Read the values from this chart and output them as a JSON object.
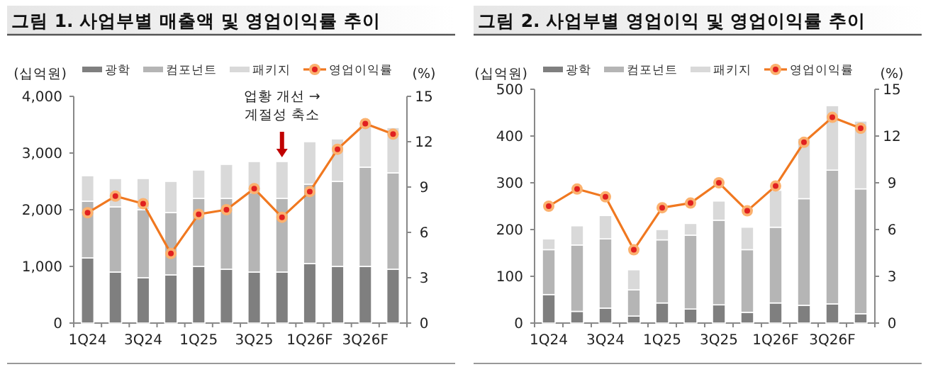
{
  "chart_data": [
    {
      "type": "bar",
      "title": "그림 1. 사업부별 매출액 및 영업이익률 추이",
      "ylabel": "(십억원)",
      "y2label": "(%)",
      "categories": [
        "1Q24",
        null,
        "3Q24",
        null,
        "1Q25",
        null,
        "3Q25",
        null,
        "1Q26F",
        null,
        "3Q26F",
        null
      ],
      "stacked": true,
      "legend": "top",
      "series": [
        {
          "name": "광학",
          "color": "#7f7f7f",
          "values": [
            1150,
            900,
            800,
            850,
            1000,
            950,
            900,
            900,
            1050,
            1000,
            1000,
            950
          ]
        },
        {
          "name": "컴포넌트",
          "color": "#b5b5b5",
          "values": [
            1000,
            1150,
            1200,
            1100,
            1200,
            1250,
            1400,
            1300,
            1400,
            1500,
            1750,
            1700
          ]
        },
        {
          "name": "패키지",
          "color": "#d9d9d9",
          "values": [
            450,
            500,
            550,
            550,
            500,
            600,
            550,
            650,
            750,
            750,
            800,
            800
          ]
        },
        {
          "name": "영업이익률",
          "type": "line",
          "axis": "y2",
          "color": "#f07820",
          "marker": "circle",
          "values": [
            7.3,
            8.4,
            7.9,
            4.6,
            7.2,
            7.5,
            8.9,
            7.0,
            8.7,
            11.5,
            13.2,
            12.5
          ]
        }
      ],
      "ylim": [
        0,
        4000
      ],
      "yticks": [
        {
          "value": 0,
          "label": "0"
        },
        {
          "value": 1000,
          "label": "1,000"
        },
        {
          "value": 2000,
          "label": "2,000"
        },
        {
          "value": 3000,
          "label": "3,000"
        },
        {
          "value": 4000,
          "label": "4,000"
        }
      ],
      "y2lim": [
        0,
        15
      ],
      "y2ticks": [
        0,
        3,
        6,
        9,
        12,
        15
      ],
      "annotations": [
        "업황 개선 →",
        "계절성 축소"
      ]
    },
    {
      "type": "bar",
      "title": "그림 2. 사업부별 영업이익 및 영업이익률 추이",
      "ylabel": "(십억원)",
      "y2label": "(%)",
      "categories": [
        "1Q24",
        null,
        "3Q24",
        null,
        "1Q25",
        null,
        "3Q25",
        null,
        "1Q26F",
        null,
        "3Q26F",
        null
      ],
      "stacked": true,
      "legend": "top",
      "series": [
        {
          "name": "광학",
          "color": "#7f7f7f",
          "values": [
            61,
            25,
            32,
            15,
            43,
            30,
            39,
            23,
            43,
            38,
            41,
            20
          ]
        },
        {
          "name": "컴포넌트",
          "color": "#b5b5b5",
          "values": [
            96,
            142,
            148,
            56,
            135,
            158,
            181,
            134,
            162,
            228,
            286,
            267
          ]
        },
        {
          "name": "패키지",
          "color": "#d9d9d9",
          "values": [
            23,
            41,
            50,
            43,
            22,
            25,
            41,
            48,
            79,
            129,
            138,
            145
          ]
        },
        {
          "name": "영업이익률",
          "type": "line",
          "axis": "y2",
          "color": "#f07820",
          "marker": "circle",
          "values": [
            7.5,
            8.6,
            8.1,
            4.7,
            7.4,
            7.7,
            9.0,
            7.2,
            8.8,
            11.6,
            13.2,
            12.5
          ]
        }
      ],
      "ylim": [
        0,
        500
      ],
      "yticks": [
        0,
        100,
        200,
        300,
        400,
        500
      ],
      "y2lim": [
        0,
        15
      ],
      "y2ticks": [
        0,
        3,
        6,
        9,
        12,
        15
      ]
    }
  ]
}
